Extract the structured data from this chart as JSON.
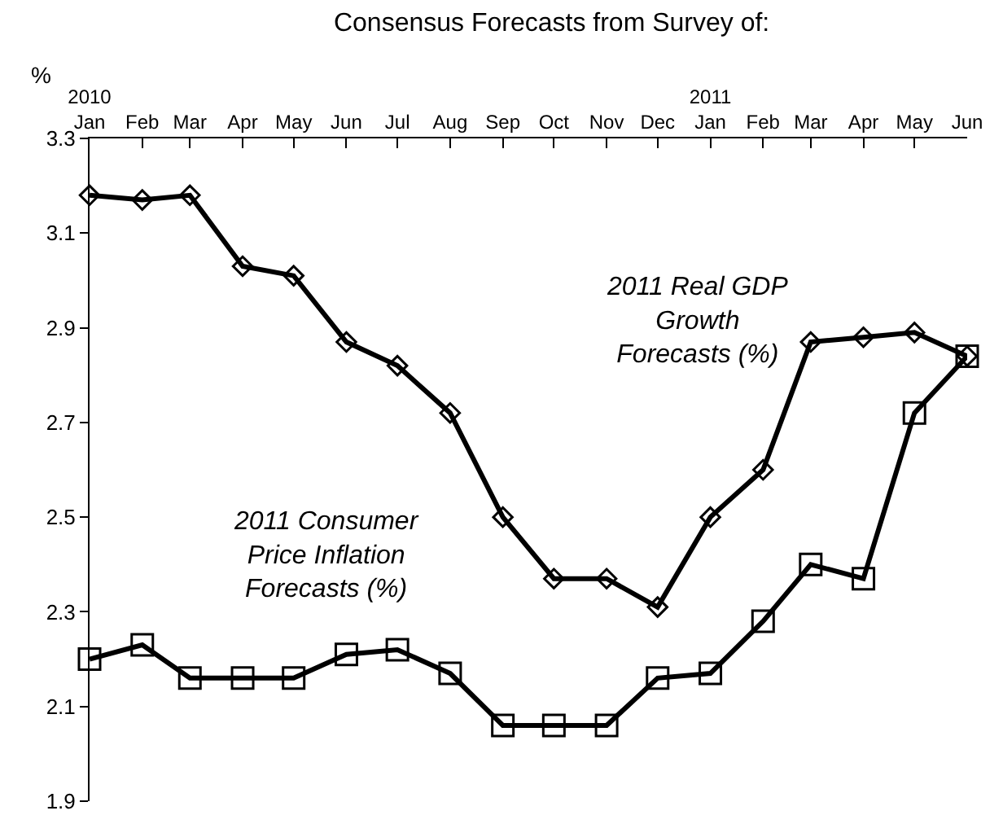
{
  "chart_data": {
    "type": "line",
    "title": "Consensus Forecasts from Survey of:",
    "ylabel": "%",
    "x": [
      "2010-01",
      "2010-02",
      "2010-03",
      "2010-04",
      "2010-05",
      "2010-06",
      "2010-07",
      "2010-08",
      "2010-09",
      "2010-10",
      "2010-11",
      "2010-12",
      "2011-01",
      "2011-02",
      "2011-03",
      "2011-04",
      "2011-05",
      "2011-06"
    ],
    "xlim": [
      "2010-01",
      "2011-06"
    ],
    "xticks": [
      {
        "value": "2010-01",
        "label": "2010\nJan"
      },
      {
        "value": "2010-02",
        "label": "Feb"
      },
      {
        "value": "2010-03",
        "label": "Mar"
      },
      {
        "value": "2010-04",
        "label": "Apr"
      },
      {
        "value": "2010-05",
        "label": "May"
      },
      {
        "value": "2010-06",
        "label": "Jun"
      },
      {
        "value": "2010-07",
        "label": "Jul"
      },
      {
        "value": "2010-08",
        "label": "Aug"
      },
      {
        "value": "2010-09",
        "label": "Sep"
      },
      {
        "value": "2010-10",
        "label": "Oct"
      },
      {
        "value": "2010-11",
        "label": "Nov"
      },
      {
        "value": "2010-12",
        "label": "Dec"
      },
      {
        "value": "2011-01",
        "label": "2011\nJan"
      },
      {
        "value": "2011-02",
        "label": "Feb"
      },
      {
        "value": "2011-03",
        "label": "Mar"
      },
      {
        "value": "2011-04",
        "label": "Apr"
      },
      {
        "value": "2011-05",
        "label": "May"
      },
      {
        "value": "2011-06",
        "label": "Jun"
      }
    ],
    "ylim": [
      1.9,
      3.3
    ],
    "yticks": [
      1.9,
      2.1,
      2.3,
      2.5,
      2.7,
      2.9,
      3.1,
      3.3
    ],
    "grid": false,
    "legend": false,
    "line_style": "solid",
    "series": [
      {
        "name": "2011 Real GDP\nGrowth\nForecasts (%)",
        "color": "#000000",
        "marker": "diamond",
        "values": [
          3.18,
          3.17,
          3.18,
          3.03,
          3.01,
          2.87,
          2.82,
          2.72,
          2.5,
          2.37,
          2.37,
          2.31,
          2.5,
          2.6,
          2.87,
          2.88,
          2.89,
          2.84
        ]
      },
      {
        "name": "2011 Consumer\nPrice Inflation\nForecasts (%)",
        "color": "#000000",
        "marker": "square",
        "values": [
          2.2,
          2.23,
          2.16,
          2.16,
          2.16,
          2.21,
          2.22,
          2.17,
          2.06,
          2.06,
          2.06,
          2.16,
          2.17,
          2.28,
          2.4,
          2.37,
          2.72,
          2.84
        ]
      }
    ]
  }
}
